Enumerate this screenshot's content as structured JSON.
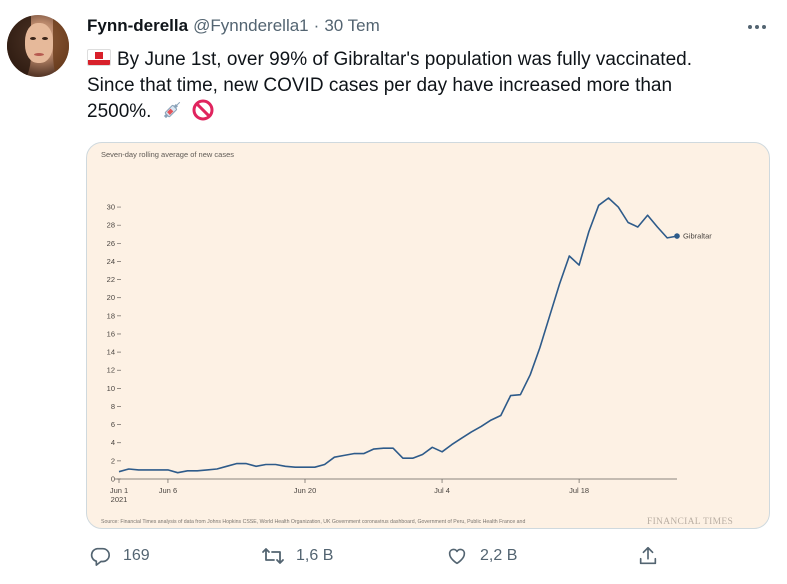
{
  "tweet": {
    "display_name": "Fynn-derella",
    "handle": "@Fynnderella1",
    "separator": "·",
    "time": "30 Tem",
    "text_line1": "By June 1st, over 99% of Gibraltar's population was fully vaccinated.",
    "text_line2": "Since that time, new COVID cases per day have increased more than",
    "text_line3": "2500%.",
    "flag_icon": "gibraltar-flag-icon",
    "emoji_icons": [
      "syringe-icon",
      "prohibited-icon"
    ]
  },
  "actions": {
    "reply_count": "169",
    "retweet_count": "1,6 B",
    "like_count": "2,2 B",
    "icons": [
      "reply-icon",
      "retweet-icon",
      "like-icon",
      "share-icon"
    ]
  },
  "colors": {
    "text_primary": "#0f1419",
    "text_secondary": "#536471",
    "chart_background": "#fdf1e4",
    "line_color": "#2e5b8a"
  },
  "chart_data": {
    "type": "line",
    "title": "Seven-day rolling average of new cases",
    "series": [
      {
        "name": "Gibraltar",
        "values": [
          0.8,
          1.1,
          1.0,
          1.0,
          1.0,
          1.0,
          0.7,
          0.9,
          0.9,
          1.0,
          1.1,
          1.4,
          1.7,
          1.7,
          1.4,
          1.6,
          1.6,
          1.4,
          1.3,
          1.3,
          1.3,
          1.6,
          2.4,
          2.6,
          2.8,
          2.8,
          3.3,
          3.4,
          3.4,
          2.3,
          2.3,
          2.7,
          3.5,
          3.0,
          3.8,
          4.5,
          5.2,
          5.8,
          6.5,
          7.0,
          9.2,
          9.3,
          11.5,
          14.5,
          18.0,
          21.5,
          24.6,
          23.6,
          27.3,
          30.2,
          31.0,
          30.0,
          28.3,
          27.8,
          29.1,
          27.8,
          26.6,
          26.8
        ]
      }
    ],
    "x_start_label": "Jun 1",
    "x_start_year": "2021",
    "x_tick_labels": [
      "Jun 1",
      "Jun 6",
      "Jun 20",
      "Jul 4",
      "Jul 18"
    ],
    "y_ticks": [
      0,
      2,
      4,
      6,
      8,
      10,
      12,
      14,
      16,
      18,
      20,
      22,
      24,
      26,
      28,
      30
    ],
    "ylim": [
      0,
      31
    ],
    "source": "Source: Financial Times analysis of data from Johns Hopkins CSSE, World Health Organization, UK Government coronavirus dashboard, Government of Peru, Public Health France and",
    "brand": "FINANCIAL TIMES",
    "grid": false,
    "legend": "end-of-line label"
  }
}
